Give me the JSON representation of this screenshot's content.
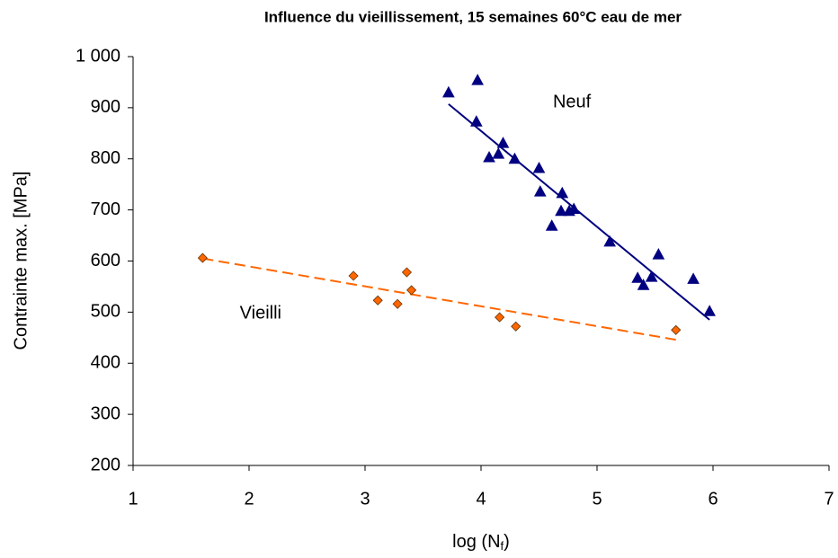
{
  "chart_data": {
    "type": "scatter",
    "title": "Influence du vieillissement, 15 semaines 60°C eau de mer",
    "x_label": [
      "log (N",
      "f",
      ")"
    ],
    "y_label": "Contrainte max. [MPa]",
    "xlim": [
      1,
      7
    ],
    "xticks": [
      1,
      2,
      3,
      4,
      5,
      6,
      7
    ],
    "ylim": [
      200,
      1000
    ],
    "yticks": [
      200,
      300,
      400,
      500,
      600,
      700,
      800,
      900,
      {
        "value": 1000,
        "label": "1 000"
      }
    ],
    "grid": false,
    "series": [
      {
        "name": "Neuf",
        "marker": "triangle",
        "color": "#000080",
        "x": [
          3.72,
          3.97,
          3.96,
          4.07,
          4.15,
          4.19,
          4.29,
          4.5,
          4.51,
          4.7,
          4.69,
          4.76,
          4.8,
          4.61,
          5.11,
          5.35,
          5.4,
          5.47,
          5.53,
          5.83,
          5.97
        ],
        "values": [
          930,
          954,
          873,
          803,
          810,
          831,
          800,
          782,
          736,
          733,
          698,
          698,
          702,
          669,
          638,
          567,
          553,
          569,
          613,
          565,
          502
        ],
        "trend": {
          "x": [
            3.72,
            5.97
          ],
          "values": [
            907,
            485
          ],
          "dash": false
        }
      },
      {
        "name": "Vieilli",
        "marker": "diamond",
        "color": "#FF6600",
        "x": [
          1.6,
          2.9,
          3.11,
          3.28,
          3.36,
          3.4,
          4.16,
          4.3,
          5.68
        ],
        "values": [
          606,
          571,
          523,
          516,
          578,
          543,
          490,
          472,
          465
        ],
        "trend": {
          "x": [
            1.6,
            5.68
          ],
          "values": [
            605,
            446
          ],
          "dash": true
        }
      }
    ],
    "annotations": [
      {
        "text": "Neuf",
        "x": 4.62,
        "y": 910
      },
      {
        "text": "Vieilli",
        "x": 1.92,
        "y": 497
      }
    ]
  }
}
